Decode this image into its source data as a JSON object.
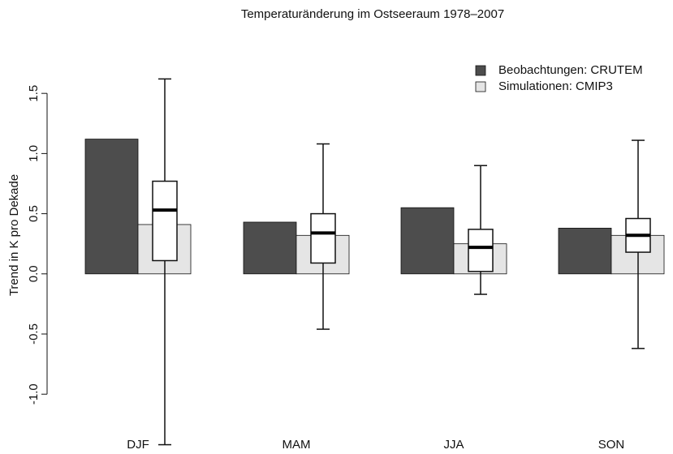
{
  "chart_data": {
    "type": "bar",
    "title": "Temperaturänderung im Ostseeraum 1978–2007",
    "y_label": "Trend in K pro Dekade",
    "categories": [
      "DJF",
      "MAM",
      "JJA",
      "SON"
    ],
    "series": [
      {
        "name": "Beobachtungen: CRUTEM",
        "color": "#4d4d4d",
        "values": [
          1.12,
          0.43,
          0.55,
          0.38
        ]
      },
      {
        "name": "Simulationen: CMIP3",
        "color": "#e5e5e5",
        "values": [
          0.41,
          0.32,
          0.25,
          0.32
        ]
      }
    ],
    "boxes": {
      "low": [
        -1.42,
        -0.46,
        -0.17,
        -0.62
      ],
      "q1": [
        0.11,
        0.09,
        0.02,
        0.18
      ],
      "median": [
        0.53,
        0.34,
        0.22,
        0.32
      ],
      "q3": [
        0.77,
        0.5,
        0.37,
        0.46
      ],
      "high": [
        1.62,
        1.08,
        0.9,
        1.11
      ]
    },
    "ylim": [
      -1.45,
      1.7
    ],
    "yticks": [
      {
        "value": -1,
        "label": "-1.0"
      },
      -0.5,
      {
        "value": 0,
        "label": "0.0"
      },
      0.5,
      {
        "value": 1,
        "label": "1.0"
      },
      1.5
    ],
    "legend": "topright"
  }
}
